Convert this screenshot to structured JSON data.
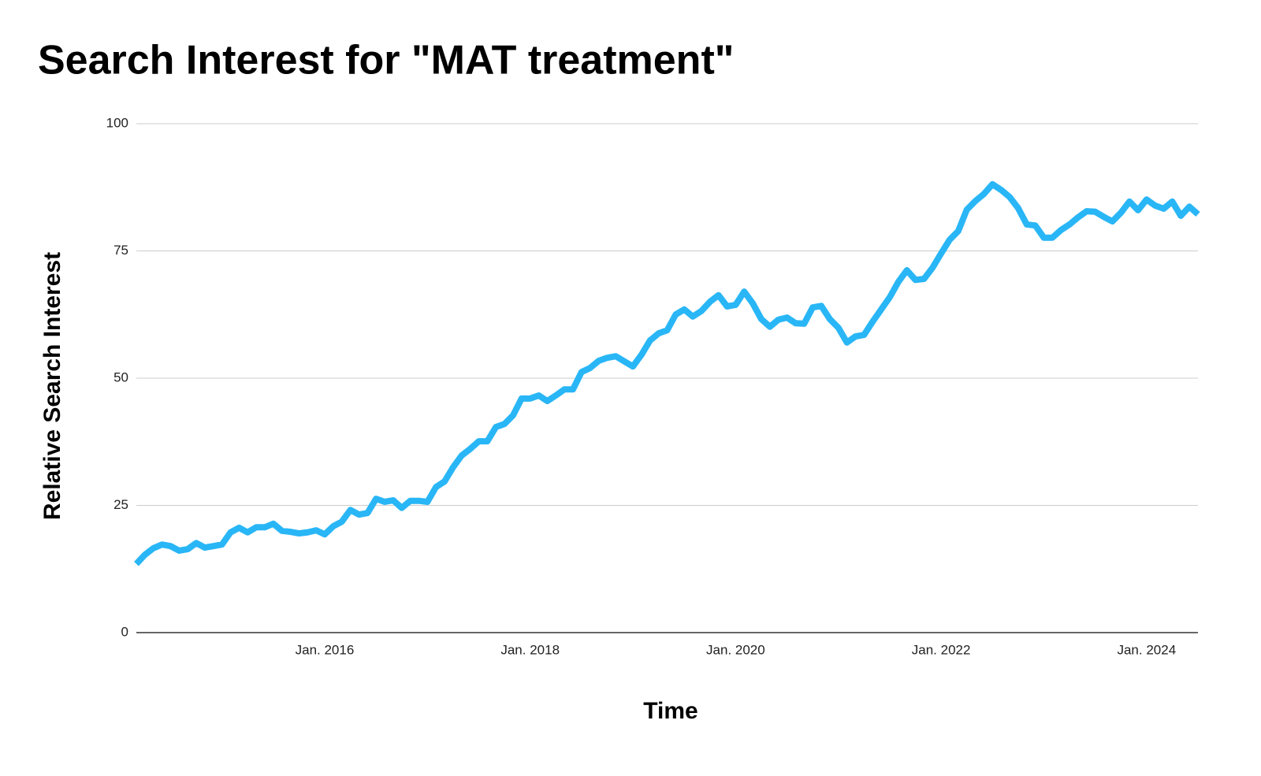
{
  "chart_data": {
    "type": "line",
    "title": "Search Interest for \"MAT treatment\"",
    "x_label": "Time",
    "y_label": "Relative Search Interest",
    "x": [
      "2014-03",
      "2014-04",
      "2014-05",
      "2014-06",
      "2014-07",
      "2014-08",
      "2014-09",
      "2014-10",
      "2014-11",
      "2014-12",
      "2015-01",
      "2015-02",
      "2015-03",
      "2015-04",
      "2015-05",
      "2015-06",
      "2015-07",
      "2015-08",
      "2015-09",
      "2015-10",
      "2015-11",
      "2015-12",
      "2016-01",
      "2016-02",
      "2016-03",
      "2016-04",
      "2016-05",
      "2016-06",
      "2016-07",
      "2016-08",
      "2016-09",
      "2016-10",
      "2016-11",
      "2016-12",
      "2017-01",
      "2017-02",
      "2017-03",
      "2017-04",
      "2017-05",
      "2017-06",
      "2017-07",
      "2017-08",
      "2017-09",
      "2017-10",
      "2017-11",
      "2017-12",
      "2018-01",
      "2018-02",
      "2018-03",
      "2018-04",
      "2018-05",
      "2018-06",
      "2018-07",
      "2018-08",
      "2018-09",
      "2018-10",
      "2018-11",
      "2018-12",
      "2019-01",
      "2019-02",
      "2019-03",
      "2019-04",
      "2019-05",
      "2019-06",
      "2019-07",
      "2019-08",
      "2019-09",
      "2019-10",
      "2019-11",
      "2019-12",
      "2020-01",
      "2020-02",
      "2020-03",
      "2020-04",
      "2020-05",
      "2020-06",
      "2020-07",
      "2020-08",
      "2020-09",
      "2020-10",
      "2020-11",
      "2020-12",
      "2021-01",
      "2021-02",
      "2021-03",
      "2021-04",
      "2021-05",
      "2021-06",
      "2021-07",
      "2021-08",
      "2021-09",
      "2021-10",
      "2021-11",
      "2021-12",
      "2022-01",
      "2022-02",
      "2022-03",
      "2022-04",
      "2022-05",
      "2022-06",
      "2022-07",
      "2022-08",
      "2022-09",
      "2022-10",
      "2022-11",
      "2022-12",
      "2023-01",
      "2023-02",
      "2023-03",
      "2023-04",
      "2023-05",
      "2023-06",
      "2023-07",
      "2023-08",
      "2023-09",
      "2023-10",
      "2023-11",
      "2023-12",
      "2024-01",
      "2024-02",
      "2024-03",
      "2024-04",
      "2024-05",
      "2024-06",
      "2024-07"
    ],
    "series": [
      {
        "name": "MAT treatment",
        "color": "#29b6f6",
        "values": [
          13.5,
          15.3,
          16.6,
          17.3,
          17,
          16.1,
          16.4,
          17.6,
          16.7,
          17,
          17.3,
          19.7,
          20.6,
          19.7,
          20.7,
          20.7,
          21.4,
          20,
          19.8,
          19.5,
          19.7,
          20.1,
          19.3,
          20.9,
          21.8,
          24.1,
          23.2,
          23.5,
          26.3,
          25.7,
          26,
          24.5,
          25.9,
          25.9,
          25.7,
          28.6,
          29.7,
          32.5,
          34.8,
          36.1,
          37.6,
          37.6,
          40.4,
          41,
          42.7,
          46,
          46,
          46.6,
          45.5,
          46.6,
          47.8,
          47.8,
          51.2,
          52,
          53.4,
          54,
          54.3,
          53.3,
          52.3,
          54.6,
          57.4,
          58.8,
          59.4,
          62.5,
          63.5,
          62.1,
          63.2,
          65,
          66.3,
          64.1,
          64.4,
          67,
          64.7,
          61.6,
          60.1,
          61.5,
          61.9,
          60.8,
          60.7,
          63.9,
          64.2,
          61.6,
          59.9,
          57,
          58.2,
          58.5,
          61.1,
          63.5,
          65.9,
          68.9,
          71.2,
          69.3,
          69.5,
          71.7,
          74.5,
          77.2,
          78.9,
          83.1,
          84.8,
          86.2,
          88.1,
          87,
          85.6,
          83.4,
          80.2,
          80,
          77.6,
          77.6,
          79.1,
          80.2,
          81.6,
          82.8,
          82.7,
          81.7,
          80.8,
          82.5,
          84.7,
          83,
          85.1,
          83.9,
          83.3,
          84.7,
          81.9,
          83.7,
          82.2
        ]
      }
    ],
    "xlim": [
      "2014-03",
      "2024-07"
    ],
    "xticks": [
      {
        "value": "2016-01",
        "label": "Jan. 2016"
      },
      {
        "value": "2018-01",
        "label": "Jan. 2018"
      },
      {
        "value": "2020-01",
        "label": "Jan. 2020"
      },
      {
        "value": "2022-01",
        "label": "Jan. 2022"
      },
      {
        "value": "2024-01",
        "label": "Jan. 2024"
      }
    ],
    "ylim": [
      0,
      100
    ],
    "yticks": [
      0,
      25,
      50,
      75,
      100
    ],
    "grid": true
  }
}
